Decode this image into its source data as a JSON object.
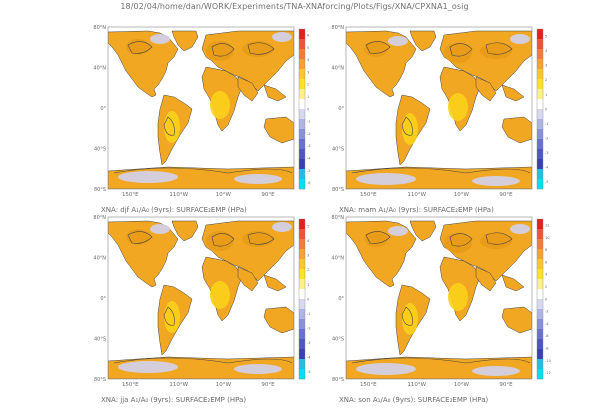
{
  "page": {
    "header": "18/02/04/home/dan/WORK/Experiments/TNA-XNAforcing/Plots/Figs/XNA/CPXNA1_osig"
  },
  "colors": {
    "ocean": "#ffffff",
    "land_hi": "#e89b17",
    "land": "#f2a723",
    "land_lo": "#fbd11a",
    "neg": "#cfd3ee",
    "contour": "#444444"
  },
  "colorbar_colors": [
    "#e4201f",
    "#f0533c",
    "#f47b40",
    "#f6a233",
    "#f9c62c",
    "#fbe222",
    "#fff08a",
    "#ffffff",
    "#d6d9f0",
    "#aeb4e4",
    "#8891d8",
    "#6a70cd",
    "#4e56c2",
    "#3a3fb4",
    "#22c0e0",
    "#00e0f0"
  ],
  "panels": [
    {
      "id": "djf",
      "caption": "XNA: djf A₁/A₀ (9yrs): SURFACE₂EMP (HPa)",
      "lat_labels": [
        "80°N",
        "40°N",
        "0°",
        "40°S",
        "80°S"
      ],
      "lon_labels": [
        "150°E",
        "110°W",
        "10°W",
        "90°E"
      ],
      "cb_labels": [
        "6",
        "5",
        "4",
        "3",
        "2",
        "1",
        "0",
        "-1",
        "-2",
        "-3",
        "-4",
        "-5",
        "-6"
      ]
    },
    {
      "id": "mam",
      "caption": "XNA: mam A₁/A₀ (9yrs): SURFACE₂EMP (HPa)",
      "lat_labels": [
        "80°N",
        "40°N",
        "0°",
        "40°S",
        "80°S"
      ],
      "lon_labels": [
        "150°E",
        "110°W",
        "10°W",
        "90°E"
      ],
      "cb_labels": [
        "5",
        "4",
        "3",
        "2",
        "1",
        "0",
        "-1",
        "-2",
        "-3",
        "-4",
        "-5"
      ]
    },
    {
      "id": "jja",
      "caption": "XNA: jja A₁/A₀ (9yrs): SURFACE₂EMP (HPa)",
      "lat_labels": [
        "80°N",
        "40°N",
        "0°",
        "40°S",
        "80°S"
      ],
      "lon_labels": [
        "150°E",
        "110°W",
        "10°W",
        "90°E"
      ],
      "cb_labels": [
        "5",
        "4",
        "3",
        "2",
        "1",
        "0",
        "-1",
        "-2",
        "-3",
        "-4",
        "-5"
      ]
    },
    {
      "id": "son",
      "caption": "XNA: son A₁/A₀ (9yrs): SURFACE₂EMP (HPa)",
      "lat_labels": [
        "80°N",
        "40°N",
        "0°",
        "40°S",
        "80°S"
      ],
      "lon_labels": [
        "150°E",
        "110°W",
        "10°W",
        "90°E"
      ],
      "cb_labels": [
        "12",
        "10",
        "8",
        "6",
        "4",
        "2",
        "0",
        "-2",
        "-4",
        "-6",
        "-8",
        "-10",
        "-12"
      ]
    }
  ]
}
